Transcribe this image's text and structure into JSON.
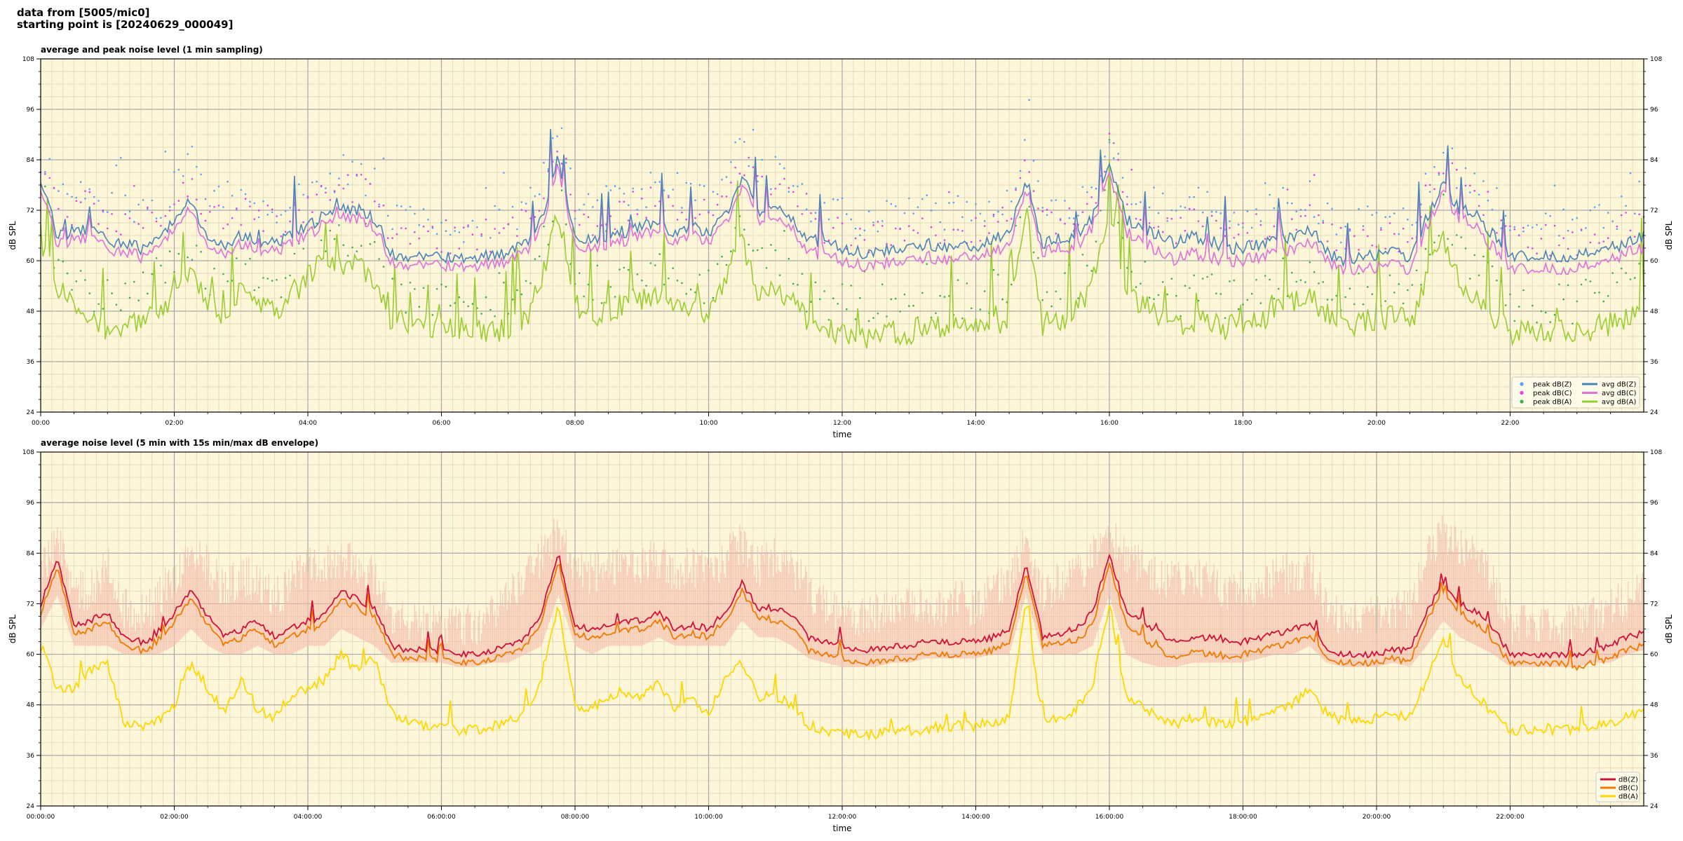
{
  "header": {
    "line1": "data from [5005/mic0]",
    "line2": "starting point is [20240629_000049]"
  },
  "colors": {
    "panel_bg": "#fdf6d8",
    "grid_major": "#a8a8a8",
    "grid_minor": "#d9d2b4",
    "z": "#4a83b8",
    "c": "#e070d8",
    "a": "#9acd32",
    "peak_z": "#5aa0f0",
    "peak_c": "#e040e0",
    "peak_a": "#3cb04a",
    "z5": "#d0103a",
    "c5": "#f07a00",
    "a5": "#ffd700",
    "envelope": "#f4b8a8"
  },
  "chart_data": [
    {
      "type": "line",
      "title": "average and peak noise level (1 min sampling)",
      "xlabel": "time",
      "ylabel": "dB SPL",
      "ylim": [
        24,
        108
      ],
      "xlim_hours": [
        0,
        24
      ],
      "yticks": [
        24,
        36,
        48,
        60,
        72,
        84,
        96,
        108
      ],
      "xtick_labels": [
        "00:00",
        "02:00",
        "04:00",
        "06:00",
        "08:00",
        "10:00",
        "12:00",
        "14:00",
        "16:00",
        "18:00",
        "20:00",
        "22:00"
      ],
      "grid": true,
      "legend_position": "bottom-right",
      "legend": [
        "peak dB(Z)",
        "peak dB(C)",
        "peak dB(A)",
        "avg dB(Z)",
        "avg dB(C)",
        "avg dB(A)"
      ],
      "x_hours": [
        0.0,
        0.25,
        0.5,
        0.75,
        1.0,
        1.25,
        1.5,
        1.75,
        2.0,
        2.25,
        2.5,
        2.75,
        3.0,
        3.25,
        3.5,
        3.75,
        4.0,
        4.25,
        4.5,
        4.75,
        5.0,
        5.25,
        5.5,
        5.75,
        6.0,
        6.25,
        6.5,
        6.75,
        7.0,
        7.25,
        7.5,
        7.75,
        8.0,
        8.25,
        8.5,
        8.75,
        9.0,
        9.25,
        9.5,
        9.75,
        10.0,
        10.25,
        10.5,
        10.75,
        11.0,
        11.25,
        11.5,
        11.75,
        12.0,
        12.25,
        12.5,
        12.75,
        13.0,
        13.25,
        13.5,
        13.75,
        14.0,
        14.25,
        14.5,
        14.75,
        15.0,
        15.25,
        15.5,
        15.75,
        16.0,
        16.25,
        16.5,
        16.75,
        17.0,
        17.25,
        17.5,
        17.75,
        18.0,
        18.25,
        18.5,
        18.75,
        19.0,
        19.25,
        19.5,
        19.75,
        20.0,
        20.25,
        20.5,
        20.75,
        21.0,
        21.25,
        21.5,
        21.75,
        22.0,
        22.25,
        22.5,
        22.75,
        23.0,
        23.25,
        23.5,
        23.75,
        24.0
      ],
      "series": [
        {
          "name": "avg dB(Z)",
          "values": [
            80,
            66,
            67,
            68,
            65,
            64,
            63,
            65,
            70,
            74,
            66,
            64,
            66,
            65,
            64,
            66,
            68,
            71,
            73,
            72,
            70,
            62,
            61,
            61,
            61,
            60,
            61,
            61,
            62,
            64,
            70,
            84,
            66,
            65,
            66,
            67,
            68,
            70,
            66,
            69,
            66,
            71,
            80,
            72,
            73,
            70,
            65,
            64,
            63,
            62,
            62,
            63,
            63,
            64,
            63,
            64,
            63,
            65,
            66,
            80,
            64,
            65,
            66,
            70,
            83,
            70,
            68,
            66,
            64,
            66,
            65,
            63,
            63,
            64,
            65,
            66,
            68,
            62,
            60,
            61,
            61,
            62,
            61,
            70,
            78,
            72,
            71,
            66,
            61,
            61,
            61,
            61,
            61,
            62,
            63,
            64,
            66
          ]
        },
        {
          "name": "avg dB(C)",
          "values": [
            78,
            64,
            65,
            66,
            63,
            62,
            61,
            63,
            68,
            72,
            64,
            62,
            64,
            63,
            62,
            64,
            66,
            69,
            71,
            70,
            68,
            60,
            59,
            59,
            59,
            58,
            59,
            59,
            60,
            62,
            68,
            82,
            64,
            63,
            64,
            65,
            66,
            68,
            64,
            67,
            64,
            69,
            78,
            70,
            70,
            68,
            62,
            61,
            60,
            59,
            59,
            60,
            60,
            61,
            60,
            61,
            61,
            62,
            63,
            78,
            62,
            63,
            63,
            68,
            81,
            67,
            65,
            62,
            60,
            62,
            61,
            60,
            60,
            61,
            62,
            63,
            65,
            60,
            58,
            58,
            58,
            59,
            58,
            68,
            76,
            70,
            68,
            63,
            58,
            58,
            58,
            58,
            58,
            59,
            60,
            62,
            63
          ]
        },
        {
          "name": "avg dB(A)",
          "values": [
            64,
            54,
            50,
            46,
            44,
            44,
            45,
            48,
            52,
            58,
            50,
            47,
            54,
            50,
            47,
            52,
            56,
            60,
            58,
            60,
            55,
            46,
            45,
            44,
            44,
            44,
            43,
            43,
            44,
            46,
            55,
            72,
            50,
            47,
            48,
            50,
            51,
            52,
            48,
            50,
            46,
            55,
            65,
            52,
            52,
            50,
            45,
            44,
            43,
            42,
            42,
            43,
            43,
            44,
            44,
            44,
            44,
            45,
            46,
            72,
            45,
            46,
            48,
            55,
            70,
            52,
            50,
            46,
            44,
            46,
            45,
            44,
            45,
            46,
            48,
            50,
            52,
            47,
            45,
            45,
            46,
            47,
            45,
            55,
            65,
            55,
            52,
            47,
            43,
            43,
            43,
            43,
            43,
            44,
            45,
            47,
            50
          ]
        }
      ]
    },
    {
      "type": "line",
      "title": "average noise level (5 min with 15s min/max dB envelope)",
      "xlabel": "time",
      "ylabel": "dB SPL",
      "ylim": [
        24,
        108
      ],
      "xlim_hours": [
        0,
        24
      ],
      "yticks": [
        24,
        36,
        48,
        60,
        72,
        84,
        96,
        108
      ],
      "xtick_labels": [
        "00:00:00",
        "02:00:00",
        "04:00:00",
        "06:00:00",
        "08:00:00",
        "10:00:00",
        "12:00:00",
        "14:00:00",
        "16:00:00",
        "18:00:00",
        "20:00:00",
        "22:00:00"
      ],
      "grid": true,
      "legend_position": "bottom-right",
      "legend": [
        "dB(Z)",
        "dB(C)",
        "dB(A)"
      ],
      "x_hours": [
        0.0,
        0.25,
        0.5,
        0.75,
        1.0,
        1.25,
        1.5,
        1.75,
        2.0,
        2.25,
        2.5,
        2.75,
        3.0,
        3.25,
        3.5,
        3.75,
        4.0,
        4.25,
        4.5,
        4.75,
        5.0,
        5.25,
        5.5,
        5.75,
        6.0,
        6.25,
        6.5,
        6.75,
        7.0,
        7.25,
        7.5,
        7.75,
        8.0,
        8.25,
        8.5,
        8.75,
        9.0,
        9.25,
        9.5,
        9.75,
        10.0,
        10.25,
        10.5,
        10.75,
        11.0,
        11.25,
        11.5,
        11.75,
        12.0,
        12.25,
        12.5,
        12.75,
        13.0,
        13.25,
        13.5,
        13.75,
        14.0,
        14.25,
        14.5,
        14.75,
        15.0,
        15.25,
        15.5,
        15.75,
        16.0,
        16.25,
        16.5,
        16.75,
        17.0,
        17.25,
        17.5,
        17.75,
        18.0,
        18.25,
        18.5,
        18.75,
        19.0,
        19.25,
        19.5,
        19.75,
        20.0,
        20.25,
        20.5,
        20.75,
        21.0,
        21.25,
        21.5,
        21.75,
        22.0,
        22.25,
        22.5,
        22.75,
        23.0,
        23.25,
        23.5,
        23.75,
        24.0
      ],
      "series": [
        {
          "name": "dB(Z)",
          "values": [
            72,
            82,
            67,
            68,
            70,
            64,
            63,
            64,
            70,
            75,
            69,
            64,
            66,
            68,
            64,
            66,
            68,
            69,
            75,
            73,
            71,
            62,
            61,
            61,
            61,
            60,
            60,
            61,
            62,
            64,
            70,
            84,
            67,
            66,
            67,
            68,
            68,
            70,
            66,
            67,
            66,
            70,
            77,
            71,
            71,
            69,
            64,
            63,
            62,
            61,
            61,
            62,
            62,
            63,
            63,
            63,
            63,
            64,
            65,
            82,
            64,
            65,
            66,
            70,
            84,
            70,
            68,
            65,
            63,
            64,
            64,
            63,
            63,
            64,
            65,
            66,
            67,
            61,
            60,
            60,
            60,
            61,
            61,
            70,
            77,
            72,
            70,
            66,
            60,
            60,
            60,
            60,
            60,
            61,
            62,
            64,
            65
          ]
        },
        {
          "name": "dB(C)",
          "values": [
            70,
            80,
            65,
            66,
            68,
            62,
            61,
            62,
            68,
            73,
            67,
            62,
            64,
            66,
            62,
            64,
            66,
            67,
            73,
            71,
            69,
            60,
            59,
            59,
            59,
            58,
            58,
            59,
            60,
            62,
            68,
            82,
            65,
            64,
            65,
            66,
            66,
            68,
            64,
            65,
            64,
            68,
            75,
            69,
            68,
            66,
            61,
            60,
            59,
            58,
            58,
            59,
            59,
            60,
            60,
            60,
            60,
            61,
            62,
            80,
            62,
            63,
            63,
            67,
            82,
            67,
            64,
            61,
            59,
            61,
            60,
            59,
            60,
            61,
            62,
            63,
            64,
            59,
            58,
            58,
            58,
            59,
            58,
            68,
            75,
            70,
            67,
            63,
            58,
            58,
            58,
            58,
            57,
            58,
            59,
            61,
            62
          ]
        },
        {
          "name": "dB(A)",
          "values": [
            62,
            52,
            52,
            56,
            58,
            44,
            43,
            44,
            48,
            58,
            52,
            46,
            54,
            47,
            45,
            50,
            52,
            54,
            60,
            56,
            59,
            46,
            44,
            43,
            43,
            42,
            42,
            43,
            44,
            46,
            54,
            72,
            48,
            47,
            50,
            51,
            50,
            53,
            47,
            49,
            46,
            54,
            58,
            50,
            50,
            48,
            43,
            42,
            41,
            41,
            41,
            42,
            42,
            42,
            43,
            43,
            43,
            44,
            45,
            72,
            44,
            45,
            47,
            53,
            72,
            50,
            48,
            45,
            43,
            45,
            44,
            43,
            44,
            45,
            47,
            48,
            52,
            46,
            44,
            44,
            45,
            46,
            45,
            54,
            64,
            54,
            50,
            46,
            42,
            42,
            42,
            42,
            42,
            43,
            44,
            45,
            47
          ]
        },
        {
          "name": "envelope max",
          "values": [
            86,
            92,
            80,
            80,
            86,
            76,
            74,
            78,
            84,
            88,
            86,
            80,
            84,
            82,
            78,
            82,
            86,
            86,
            88,
            86,
            84,
            74,
            72,
            72,
            72,
            72,
            72,
            74,
            78,
            84,
            88,
            94,
            86,
            84,
            86,
            86,
            86,
            88,
            84,
            86,
            84,
            88,
            92,
            86,
            88,
            86,
            80,
            76,
            74,
            74,
            74,
            76,
            76,
            76,
            76,
            78,
            76,
            80,
            82,
            92,
            80,
            82,
            84,
            88,
            94,
            88,
            86,
            84,
            82,
            84,
            82,
            80,
            80,
            82,
            84,
            84,
            86,
            76,
            74,
            74,
            74,
            76,
            76,
            88,
            94,
            90,
            88,
            82,
            72,
            72,
            72,
            72,
            72,
            74,
            76,
            78,
            80
          ]
        },
        {
          "name": "envelope min",
          "values": [
            66,
            74,
            62,
            62,
            62,
            60,
            60,
            60,
            62,
            66,
            62,
            60,
            60,
            62,
            60,
            60,
            62,
            62,
            66,
            64,
            62,
            58,
            58,
            58,
            58,
            57,
            57,
            58,
            58,
            60,
            62,
            74,
            62,
            60,
            62,
            62,
            62,
            64,
            62,
            62,
            62,
            62,
            68,
            64,
            64,
            62,
            59,
            58,
            57,
            57,
            57,
            58,
            58,
            59,
            59,
            59,
            59,
            60,
            60,
            74,
            60,
            60,
            60,
            62,
            74,
            60,
            58,
            57,
            57,
            58,
            58,
            58,
            58,
            59,
            60,
            60,
            62,
            58,
            57,
            57,
            57,
            58,
            57,
            62,
            68,
            64,
            62,
            60,
            57,
            57,
            57,
            57,
            57,
            58,
            58,
            60,
            61
          ]
        }
      ]
    }
  ]
}
